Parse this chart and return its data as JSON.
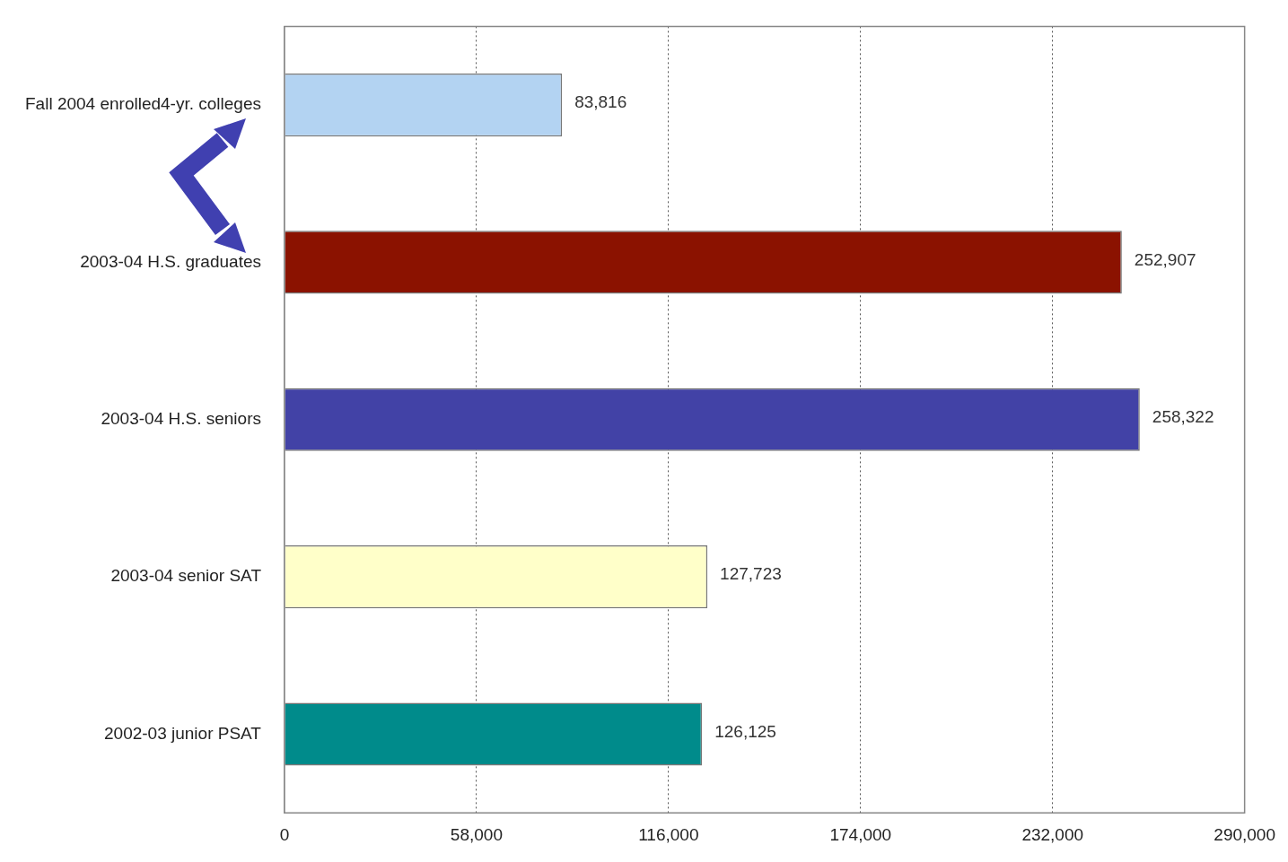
{
  "chart_data": {
    "type": "bar",
    "orientation": "horizontal",
    "categories": [
      "Fall 2004 enrolled4-yr. colleges",
      "2003-04 H.S. graduates",
      "2003-04 H.S. seniors",
      "2003-04 senior SAT",
      "2002-03 junior PSAT"
    ],
    "values": [
      83816,
      252907,
      258322,
      127723,
      126125
    ],
    "colors": [
      "#b3d3f2",
      "#8b1200",
      "#4242a6",
      "#ffffc9",
      "#008b8b"
    ],
    "value_labels": [
      "83,816",
      "252,907",
      "258,322",
      "127,723",
      "126,125"
    ],
    "xlim": [
      0,
      290000
    ],
    "xticks": [
      {
        "value": 0,
        "label": "0"
      },
      {
        "value": 58000,
        "label": "58,000"
      },
      {
        "value": 116000,
        "label": "116,000"
      },
      {
        "value": 174000,
        "label": "174,000"
      },
      {
        "value": 232000,
        "label": "232,000"
      },
      {
        "value": 290000,
        "label": "290,000"
      }
    ],
    "grid": "x",
    "legend": false
  }
}
